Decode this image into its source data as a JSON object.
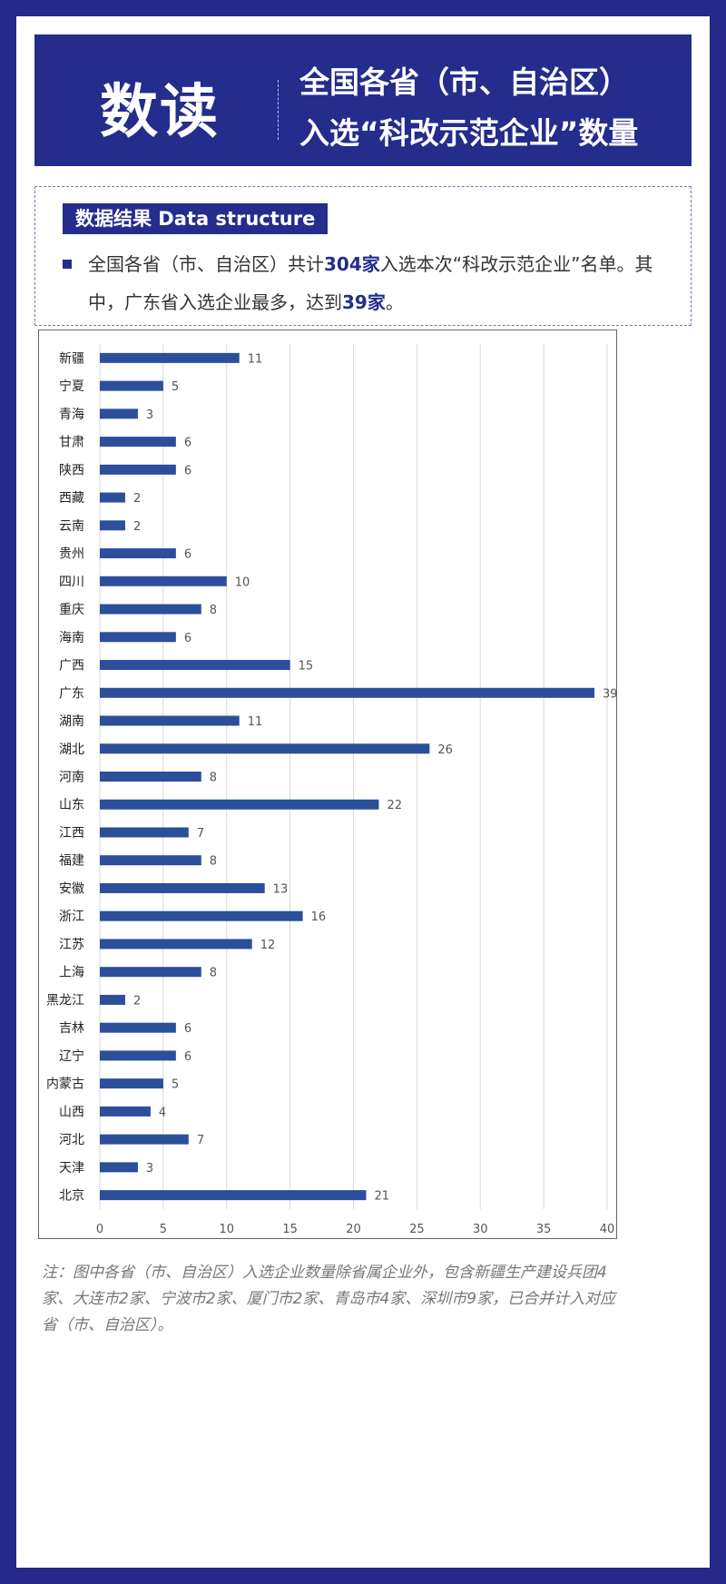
{
  "header": {
    "big_title": "数读",
    "title_line1": "全国各省（市、自治区）",
    "title_line2": "入选“科改示范企业”数量"
  },
  "summary": {
    "tag": "数据结果 Data structure",
    "text_a": "全国各省（市、自治区）共计",
    "total": "304家",
    "text_b": "入选本次“科改示范企业”名单。其中，广东省入选企业最多，达到",
    "max": "39家",
    "text_c": "。"
  },
  "note": "注：图中各省（市、自治区）入选企业数量除省属企业外，包含新疆生产建设兵团4家、大连市2家、宁波市2家、厦门市2家、青岛市4家、深圳市9家，已合并计入对应省（市、自治区）。",
  "colors": {
    "bar": "#2b4f9a",
    "header": "#242c8c"
  },
  "chart_data": {
    "type": "bar",
    "orientation": "horizontal",
    "categories": [
      "新疆",
      "宁夏",
      "青海",
      "甘肃",
      "陕西",
      "西藏",
      "云南",
      "贵州",
      "四川",
      "重庆",
      "海南",
      "广西",
      "广东",
      "湖南",
      "湖北",
      "河南",
      "山东",
      "江西",
      "福建",
      "安徽",
      "浙江",
      "江苏",
      "上海",
      "黑龙江",
      "吉林",
      "辽宁",
      "内蒙古",
      "山西",
      "河北",
      "天津",
      "北京"
    ],
    "values": [
      11,
      5,
      3,
      6,
      6,
      2,
      2,
      6,
      10,
      8,
      6,
      15,
      39,
      11,
      26,
      8,
      22,
      7,
      8,
      13,
      16,
      12,
      8,
      2,
      6,
      6,
      5,
      4,
      7,
      3,
      21
    ],
    "xlim": [
      0,
      40
    ],
    "xticks": [
      0,
      5,
      10,
      15,
      20,
      25,
      30,
      35,
      40
    ],
    "grid": true,
    "data_labels": true
  }
}
